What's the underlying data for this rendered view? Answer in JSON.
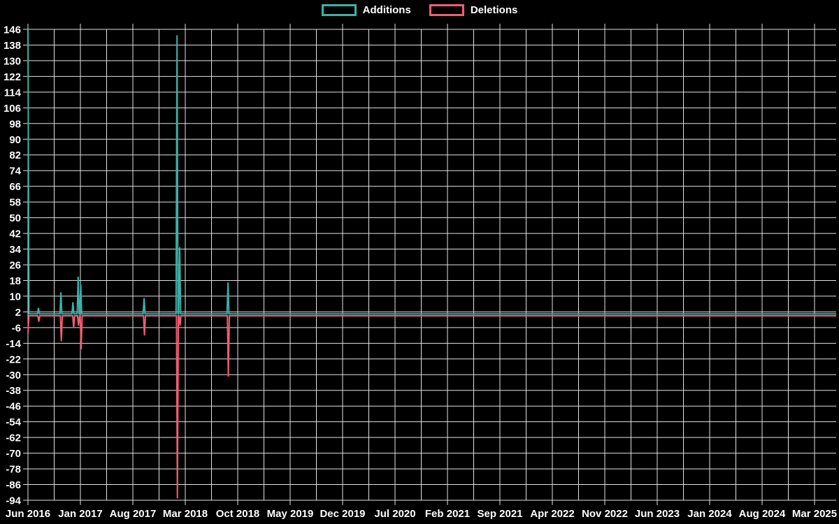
{
  "legend": {
    "items": [
      {
        "label": "Additions",
        "color": "#3EB1A8"
      },
      {
        "label": "Deletions",
        "color": "#F15E74"
      }
    ]
  },
  "chart_data": {
    "type": "line",
    "title": "",
    "background": "#000000",
    "grid_color": "#e2e2e2",
    "text_color": "#ffffff",
    "legend_position": "top-center",
    "grid": true,
    "y_axis": {
      "max": 146,
      "min": -94,
      "tick_step": 8
    },
    "x_axis": {
      "tick_labels": [
        "Jun 2016",
        "Jan 2017",
        "Aug 2017",
        "Mar 2018",
        "Oct 2018",
        "May 2019",
        "Dec 2019",
        "Jul 2020",
        "Feb 2021",
        "Sep 2021",
        "Apr 2022",
        "Nov 2022",
        "Jun 2023",
        "Jan 2024",
        "Aug 2024",
        "Mar 2025"
      ],
      "months_per_label": 7,
      "total_months": 107.9
    },
    "series": [
      {
        "name": "Deletions",
        "color": "#F15E74",
        "baseline": 0,
        "spikes": [
          [
            0,
            -9
          ],
          [
            1.45,
            -3
          ],
          [
            4.45,
            -13
          ],
          [
            6.1,
            -6
          ],
          [
            6.75,
            -5
          ],
          [
            7.1,
            -17
          ],
          [
            15.55,
            -10
          ],
          [
            19.95,
            -93
          ],
          [
            20.3,
            -5
          ],
          [
            26.75,
            -31
          ]
        ]
      },
      {
        "name": "Additions",
        "color": "#3EB1A8",
        "baseline": 1,
        "spikes": [
          [
            0,
            146
          ],
          [
            1.4,
            4
          ],
          [
            4.4,
            12
          ],
          [
            6.0,
            7
          ],
          [
            6.7,
            20
          ],
          [
            7.05,
            16
          ],
          [
            15.5,
            9
          ],
          [
            19.9,
            143
          ],
          [
            20.25,
            35
          ],
          [
            26.7,
            17
          ]
        ]
      }
    ]
  }
}
